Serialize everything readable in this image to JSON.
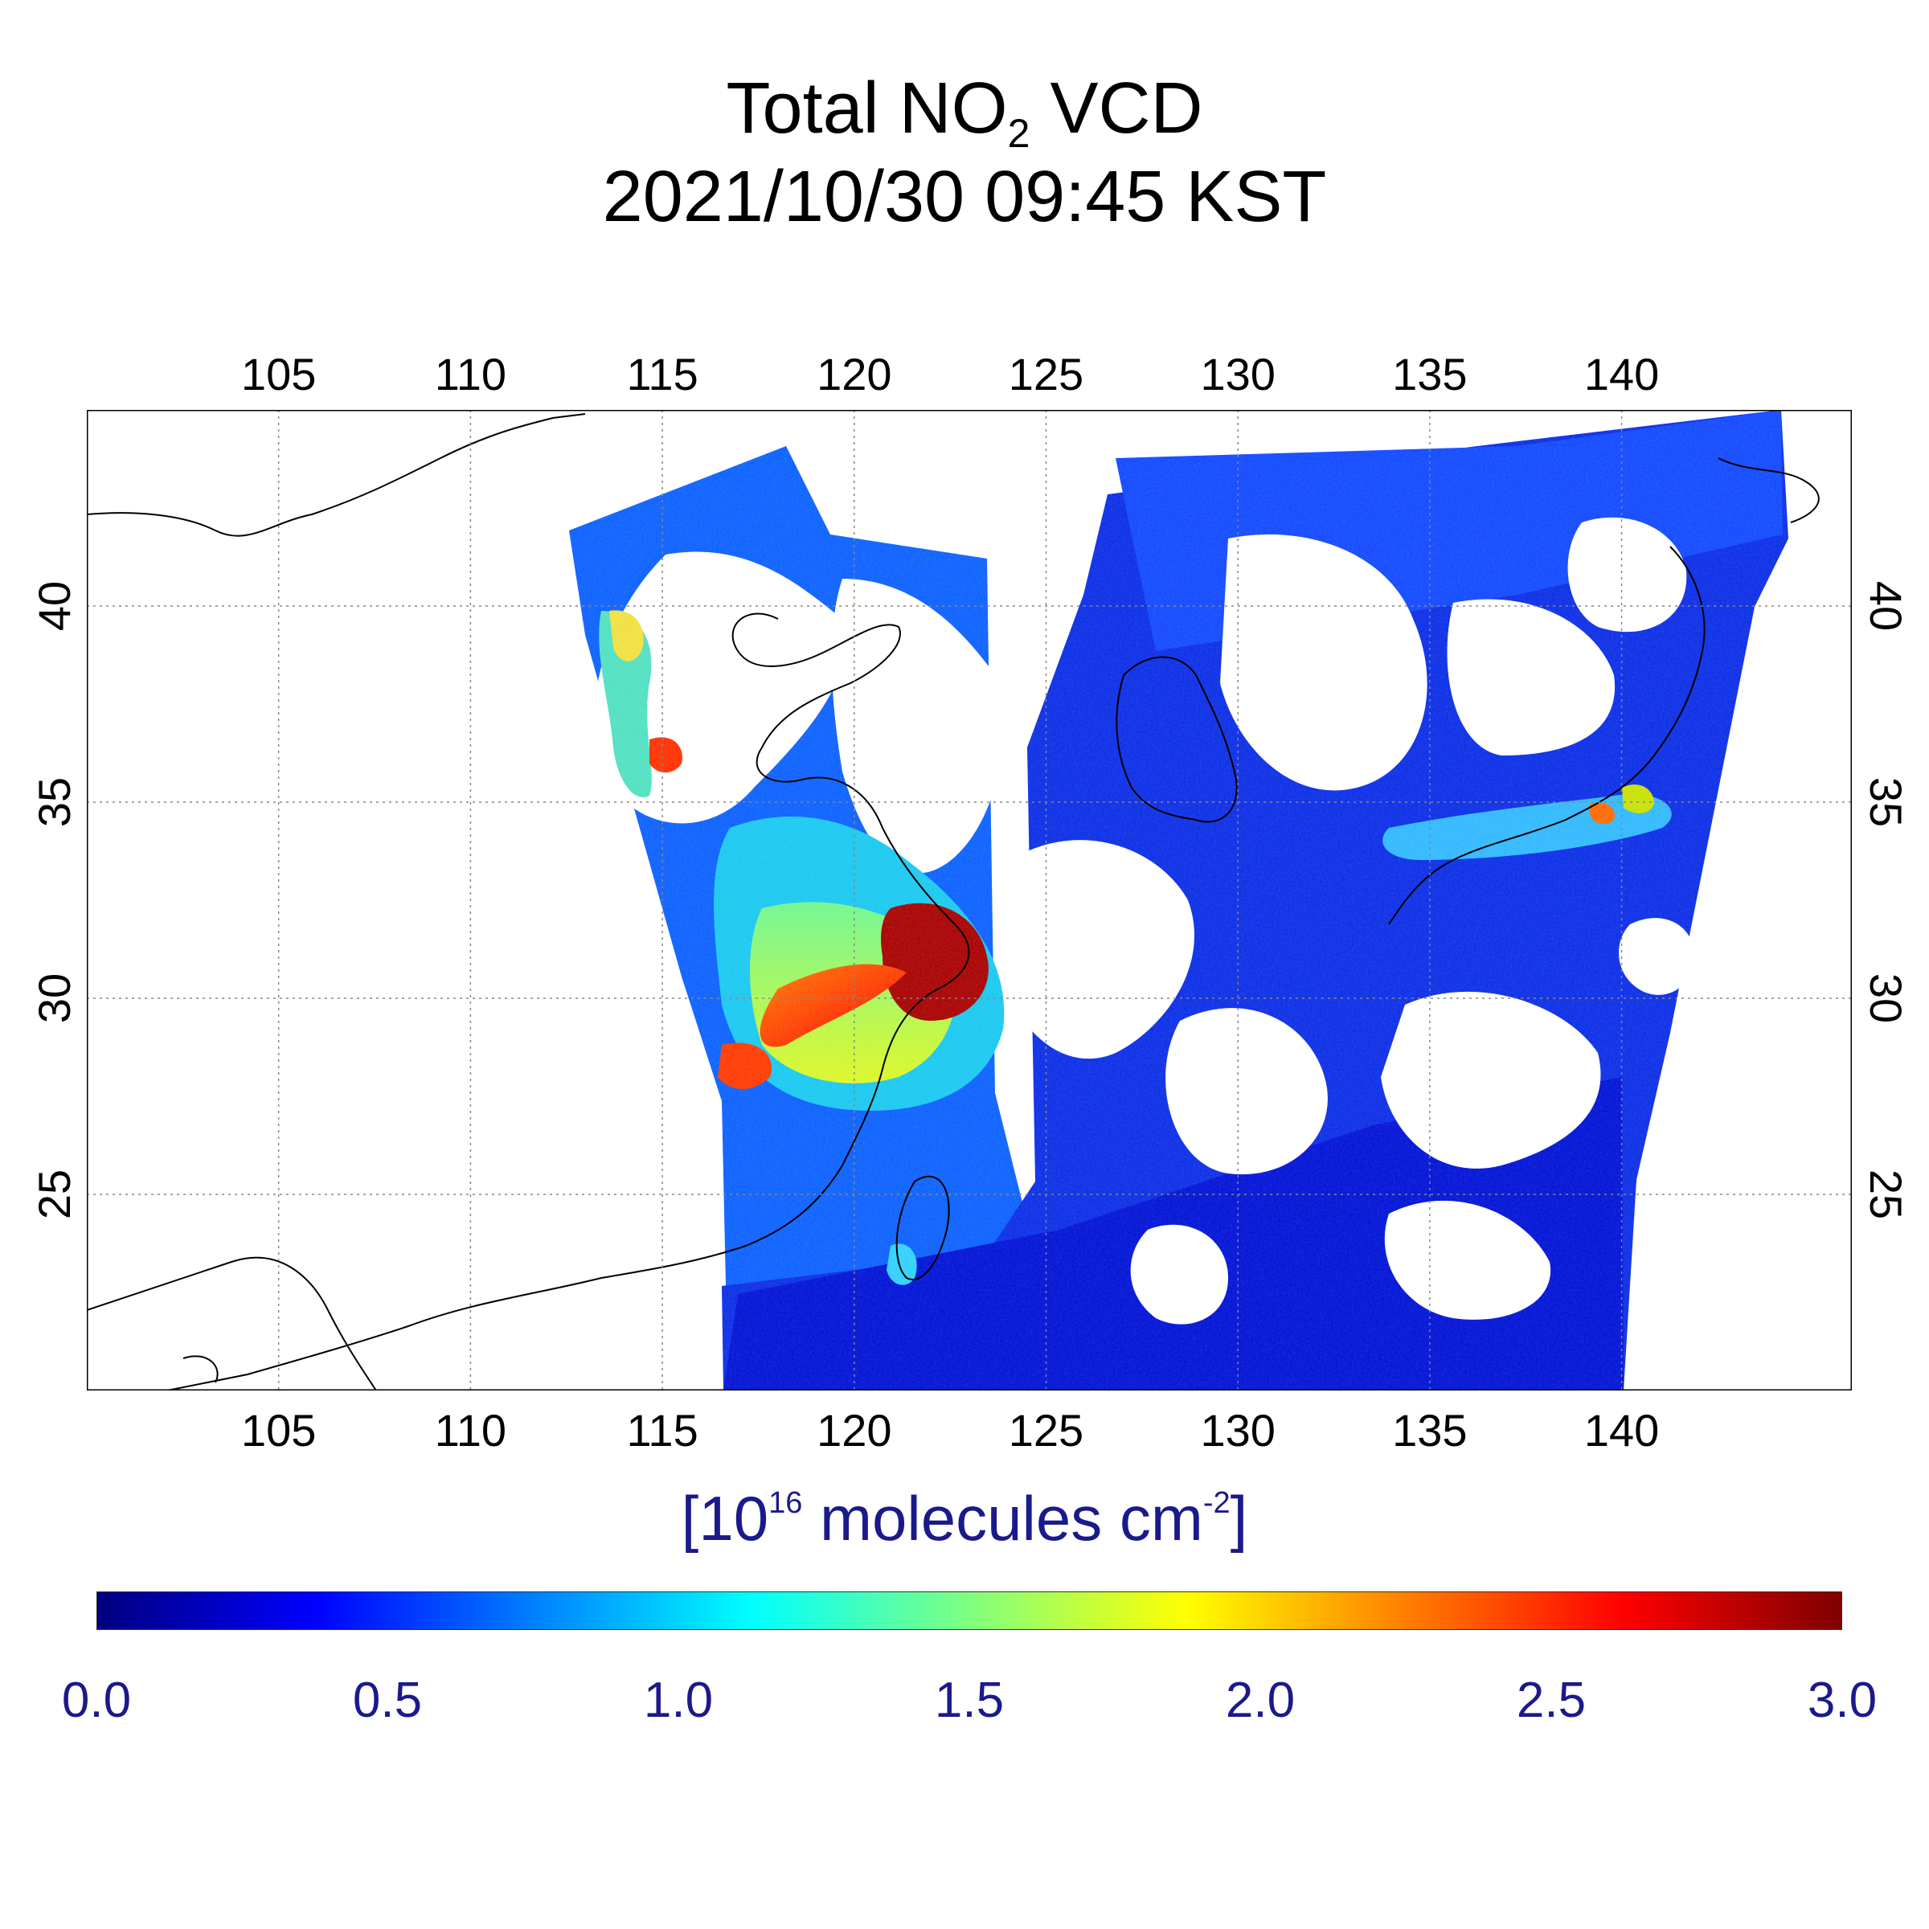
{
  "title": {
    "line1_prefix": "Total NO",
    "line1_sub": "2",
    "line1_suffix": " VCD",
    "line2": "2021/10/30 09:45 KST"
  },
  "map": {
    "lon_range": [
      100,
      146
    ],
    "lat_range": [
      20,
      45
    ],
    "lon_ticks": [
      "105",
      "110",
      "115",
      "120",
      "125",
      "130",
      "135",
      "140"
    ],
    "lat_ticks": [
      "40",
      "35",
      "30",
      "25"
    ],
    "gridlines": true,
    "gridline_style": "dotted"
  },
  "colorbar": {
    "unit_prefix": "[10",
    "unit_exp": "16",
    "unit_mid": " molecules cm",
    "unit_exp2": "-2",
    "unit_suffix": "]",
    "min": 0.0,
    "max": 3.0,
    "tick_labels": [
      "0.0",
      "0.5",
      "1.0",
      "1.5",
      "2.0",
      "2.5",
      "3.0"
    ],
    "colormap": "jet",
    "colors": [
      "#00007f",
      "#0000ff",
      "#007fff",
      "#00ffff",
      "#7fff7f",
      "#ffff00",
      "#ff7f00",
      "#ff0000",
      "#7f0000"
    ]
  }
}
